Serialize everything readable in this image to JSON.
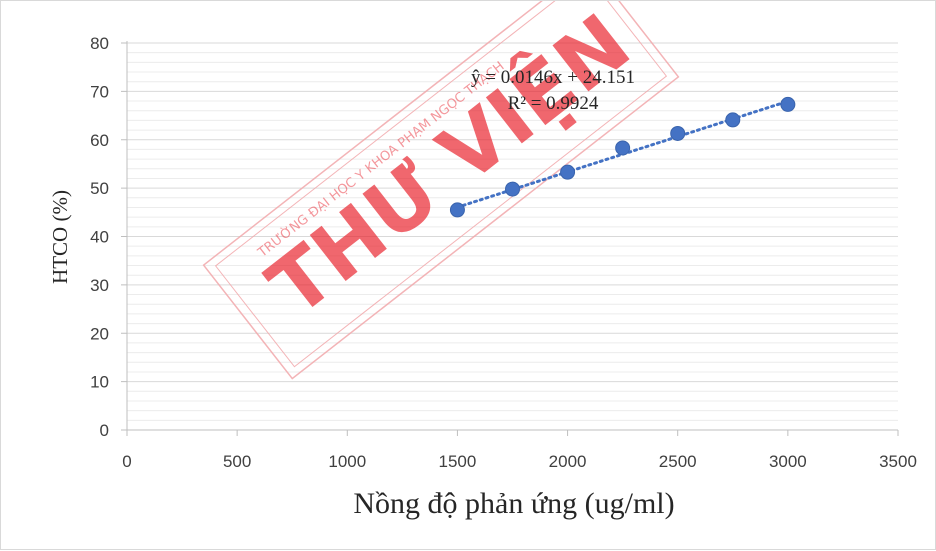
{
  "chart_data": {
    "type": "scatter",
    "title": "",
    "xlabel": "Nồng độ phản ứng (ug/ml)",
    "ylabel": "HTCO (%)",
    "xlim": [
      0,
      3500
    ],
    "ylim": [
      0,
      80
    ],
    "x_ticks": [
      0,
      500,
      1000,
      1500,
      2000,
      2500,
      3000,
      3500
    ],
    "y_ticks": [
      0,
      10,
      20,
      30,
      40,
      50,
      60,
      70,
      80
    ],
    "grid": true,
    "minor_grid": true,
    "legend": "none",
    "series": [
      {
        "x": [
          1500,
          1750,
          2000,
          2250,
          2500,
          2750,
          3000
        ],
        "y": [
          45.5,
          49.8,
          53.3,
          58.3,
          61.3,
          64.1,
          67.3
        ],
        "color": "#4472c4"
      }
    ],
    "trendline": {
      "type": "linear",
      "slope": 0.0146,
      "intercept": 24.151,
      "x_range": [
        1500,
        3000
      ],
      "style": "dotted",
      "color": "#4472c4",
      "equation_label": "ŷ = 0.0146x + 24.151",
      "r2_label": "R² = 0.9924"
    }
  },
  "watermark": {
    "main_text": "THƯ VIỆN",
    "sub_text": "TRƯỜNG ĐẠI HỌC Y KHOA PHẠM NGỌC THẠCH",
    "color": "#e8212b"
  }
}
